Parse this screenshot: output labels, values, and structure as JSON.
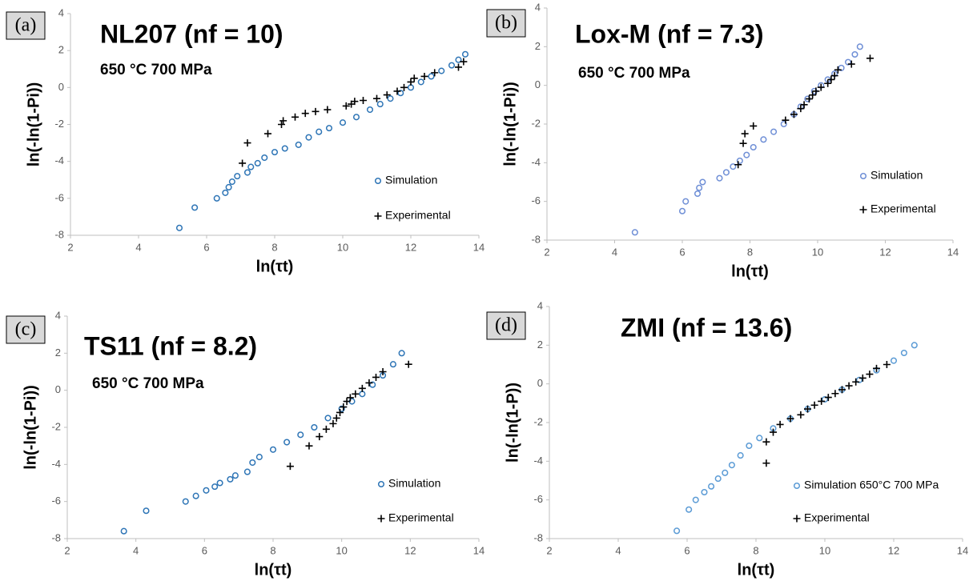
{
  "chart_data": [
    {
      "type": "scatter",
      "panel_label": "(a)",
      "title": "NL207 (nf = 10)",
      "annotation": "650 °C 700 MPa",
      "x_label": "ln(τt)",
      "y_label": "ln(-ln(1-Pi))",
      "xlim": [
        2,
        14
      ],
      "ylim": [
        -8,
        4
      ],
      "xticks": [
        2,
        4,
        6,
        8,
        10,
        12,
        14
      ],
      "yticks": [
        -8,
        -6,
        -4,
        -2,
        0,
        2,
        4
      ],
      "series": [
        {
          "name": "Simulation",
          "color": "#2e75b6",
          "marker": "circle",
          "x": [
            5.2,
            5.65,
            6.3,
            6.55,
            6.65,
            6.75,
            6.9,
            7.2,
            7.3,
            7.5,
            7.7,
            8.0,
            8.3,
            8.7,
            9.0,
            9.3,
            9.6,
            10.0,
            10.4,
            10.8,
            11.1,
            11.4,
            11.7,
            12.0,
            12.3,
            12.6,
            12.9,
            13.2,
            13.4,
            13.6
          ],
          "values": [
            -7.6,
            -6.5,
            -6.0,
            -5.7,
            -5.4,
            -5.1,
            -4.8,
            -4.6,
            -4.3,
            -4.1,
            -3.8,
            -3.5,
            -3.3,
            -3.1,
            -2.7,
            -2.4,
            -2.2,
            -1.9,
            -1.6,
            -1.2,
            -0.9,
            -0.6,
            -0.3,
            0.0,
            0.3,
            0.6,
            0.9,
            1.2,
            1.5,
            1.8
          ]
        },
        {
          "name": "Experimental",
          "color": "#000000",
          "marker": "plus",
          "x": [
            7.05,
            7.2,
            7.8,
            8.2,
            8.25,
            8.6,
            8.9,
            9.2,
            9.55,
            10.1,
            10.25,
            10.35,
            10.6,
            11.0,
            11.3,
            11.6,
            11.8,
            12.0,
            12.1,
            12.4,
            12.7,
            13.4,
            13.55
          ],
          "values": [
            -4.1,
            -3.0,
            -2.5,
            -2.0,
            -1.8,
            -1.6,
            -1.4,
            -1.3,
            -1.2,
            -1.0,
            -0.9,
            -0.75,
            -0.7,
            -0.6,
            -0.4,
            -0.2,
            0.0,
            0.3,
            0.5,
            0.6,
            0.8,
            1.1,
            1.4
          ]
        }
      ]
    },
    {
      "type": "scatter",
      "panel_label": "(b)",
      "title": "Lox-M (nf = 7.3)",
      "annotation": "650 °C 700 MPa",
      "x_label": "ln(τt)",
      "y_label": "ln(-ln(1-Pi))",
      "xlim": [
        2,
        14
      ],
      "ylim": [
        -8,
        4
      ],
      "xticks": [
        2,
        4,
        6,
        8,
        10,
        12,
        14
      ],
      "yticks": [
        -8,
        -6,
        -4,
        -2,
        0,
        2,
        4
      ],
      "series": [
        {
          "name": "Simulation",
          "color": "#6f8fd6",
          "marker": "circle",
          "x": [
            4.6,
            6.0,
            6.1,
            6.45,
            6.5,
            6.6,
            7.1,
            7.3,
            7.5,
            7.7,
            7.9,
            8.1,
            8.4,
            8.7,
            9.0,
            9.3,
            9.5,
            9.7,
            9.9,
            10.1,
            10.3,
            10.5,
            10.7,
            10.9,
            11.1,
            11.25
          ],
          "values": [
            -7.6,
            -6.5,
            -6.0,
            -5.6,
            -5.3,
            -5.0,
            -4.8,
            -4.5,
            -4.2,
            -3.9,
            -3.6,
            -3.2,
            -2.8,
            -2.4,
            -2.0,
            -1.5,
            -1.1,
            -0.7,
            -0.3,
            0.0,
            0.3,
            0.6,
            0.9,
            1.2,
            1.6,
            2.0
          ]
        },
        {
          "name": "Experimental",
          "color": "#000000",
          "marker": "plus",
          "x": [
            7.65,
            7.8,
            7.85,
            8.1,
            9.05,
            9.3,
            9.5,
            9.6,
            9.75,
            9.85,
            9.95,
            10.1,
            10.3,
            10.4,
            10.5,
            10.6,
            11.0,
            11.55
          ],
          "values": [
            -4.1,
            -3.0,
            -2.5,
            -2.1,
            -1.8,
            -1.5,
            -1.2,
            -1.0,
            -0.7,
            -0.5,
            -0.3,
            -0.1,
            0.1,
            0.3,
            0.5,
            0.8,
            1.1,
            1.4
          ]
        }
      ]
    },
    {
      "type": "scatter",
      "panel_label": "(c)",
      "title": "TS11 (nf = 8.2)",
      "annotation": "650 °C 700 MPa",
      "x_label": "ln(τt)",
      "y_label": "ln(-ln(1-Pi))",
      "xlim": [
        2,
        14
      ],
      "ylim": [
        -8,
        4
      ],
      "xticks": [
        2,
        4,
        6,
        8,
        10,
        12,
        14
      ],
      "yticks": [
        -8,
        -6,
        -4,
        -2,
        0,
        2,
        4
      ],
      "series": [
        {
          "name": "Simulation",
          "color": "#2e75b6",
          "marker": "circle",
          "x": [
            3.65,
            4.3,
            5.45,
            5.75,
            6.05,
            6.3,
            6.45,
            6.75,
            6.9,
            7.25,
            7.4,
            7.6,
            8.0,
            8.4,
            8.8,
            9.2,
            9.6,
            10.0,
            10.3,
            10.6,
            10.9,
            11.2,
            11.5,
            11.75
          ],
          "values": [
            -7.6,
            -6.5,
            -6.0,
            -5.7,
            -5.4,
            -5.2,
            -5.0,
            -4.8,
            -4.6,
            -4.4,
            -3.9,
            -3.6,
            -3.2,
            -2.8,
            -2.4,
            -2.0,
            -1.5,
            -1.0,
            -0.6,
            -0.2,
            0.3,
            0.8,
            1.4,
            2.0
          ]
        },
        {
          "name": "Experimental",
          "color": "#000000",
          "marker": "plus",
          "x": [
            8.5,
            9.05,
            9.35,
            9.55,
            9.75,
            9.85,
            9.95,
            10.05,
            10.15,
            10.25,
            10.4,
            10.6,
            10.8,
            11.0,
            11.2,
            11.95
          ],
          "values": [
            -4.1,
            -3.0,
            -2.5,
            -2.1,
            -1.8,
            -1.5,
            -1.2,
            -0.9,
            -0.6,
            -0.4,
            -0.2,
            0.1,
            0.4,
            0.7,
            1.0,
            1.4
          ]
        }
      ]
    },
    {
      "type": "scatter",
      "panel_label": "(d)",
      "title": "ZMI (nf = 13.6)",
      "x_label": "ln(τt)",
      "y_label": "ln(-ln(1-P))",
      "xlim": [
        2,
        14
      ],
      "ylim": [
        -8,
        4
      ],
      "xticks": [
        2,
        4,
        6,
        8,
        10,
        12,
        14
      ],
      "yticks": [
        -8,
        -6,
        -4,
        -2,
        0,
        2,
        4
      ],
      "series": [
        {
          "name": "Simulation 650°C 700 MPa",
          "color": "#5b9bd5",
          "marker": "circle",
          "x": [
            5.7,
            6.05,
            6.25,
            6.5,
            6.7,
            6.9,
            7.1,
            7.3,
            7.55,
            7.8,
            8.1,
            8.5,
            9.0,
            9.5,
            10.0,
            10.5,
            11.0,
            11.5,
            12.0,
            12.3,
            12.6
          ],
          "values": [
            -7.6,
            -6.5,
            -6.0,
            -5.6,
            -5.3,
            -4.9,
            -4.6,
            -4.2,
            -3.7,
            -3.2,
            -2.8,
            -2.3,
            -1.8,
            -1.3,
            -0.8,
            -0.3,
            0.2,
            0.7,
            1.2,
            1.6,
            2.0
          ]
        },
        {
          "name": "Experimental",
          "color": "#000000",
          "marker": "plus",
          "x": [
            8.3,
            8.3,
            8.5,
            8.7,
            9.0,
            9.3,
            9.5,
            9.7,
            9.9,
            10.1,
            10.3,
            10.5,
            10.7,
            10.9,
            11.1,
            11.3,
            11.5,
            11.8
          ],
          "values": [
            -4.1,
            -3.0,
            -2.5,
            -2.1,
            -1.8,
            -1.6,
            -1.3,
            -1.1,
            -0.9,
            -0.7,
            -0.5,
            -0.3,
            -0.1,
            0.1,
            0.3,
            0.5,
            0.8,
            1.0
          ]
        }
      ]
    }
  ]
}
